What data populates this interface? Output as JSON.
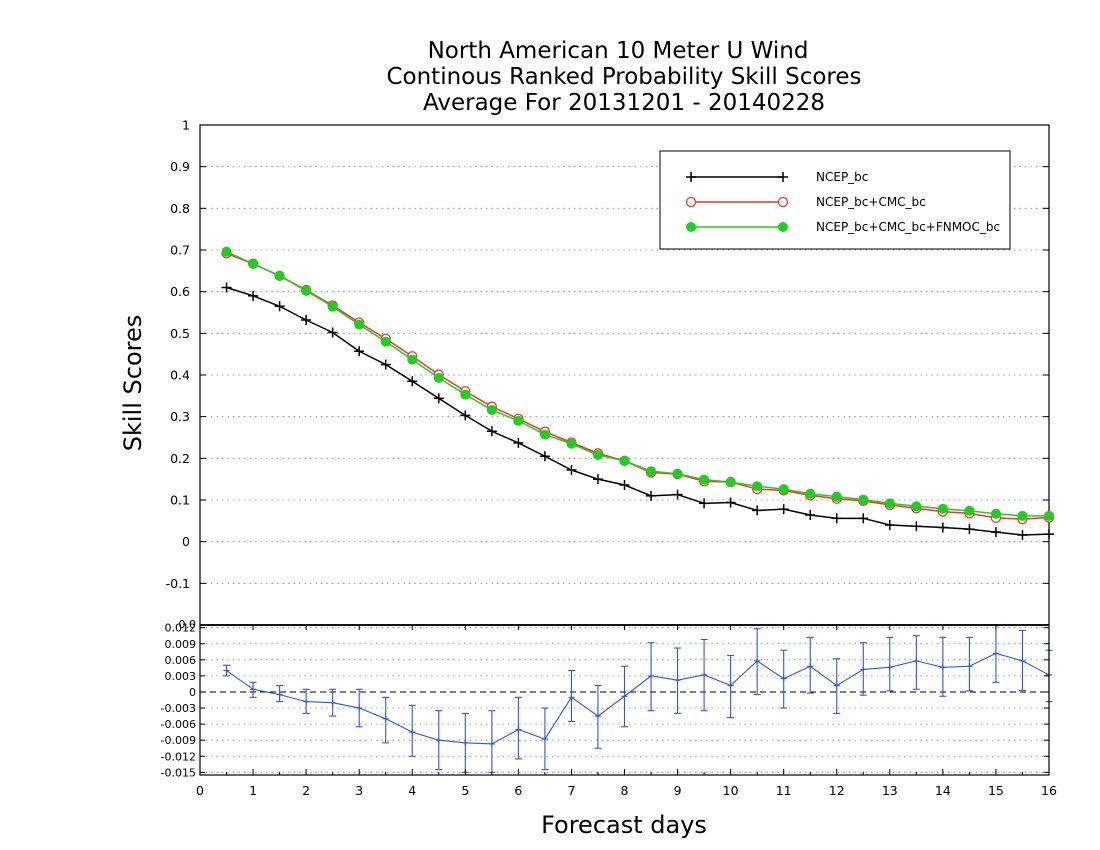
{
  "title_lines": [
    "North American 10 Meter U Wind",
    "Continous Ranked Probability Skill Scores",
    "Average For 20131201 - 20140228"
  ],
  "chart_data": [
    {
      "type": "line",
      "title": "North American 10 Meter U Wind Continous Ranked Probability Skill Scores Average For 20131201 - 20140228",
      "xlabel": "Forecast days",
      "ylabel": "Skill Scores",
      "xlim": [
        0,
        16
      ],
      "ylim": [
        -0.2,
        1
      ],
      "x_ticks": [
        0,
        1,
        2,
        3,
        4,
        5,
        6,
        7,
        8,
        9,
        10,
        11,
        12,
        13,
        14,
        15,
        16
      ],
      "y_ticks": [
        -0.1,
        0,
        0.1,
        0.2,
        0.3,
        0.4,
        0.5,
        0.6,
        0.7,
        0.8,
        0.9,
        1
      ],
      "y_tick_labels": [
        "-0.1",
        "0",
        "0.1",
        "0.2",
        "0.3",
        "0.4",
        "0.5",
        "0.6",
        "0.7",
        "0.8",
        "0.9",
        "1"
      ],
      "grid": "dotted horizontal",
      "legend_position": "top-right",
      "x": [
        0.5,
        1,
        1.5,
        2,
        2.5,
        3,
        3.5,
        4,
        4.5,
        5,
        5.5,
        6,
        6.5,
        7,
        7.5,
        8,
        8.5,
        9,
        9.5,
        10,
        10.5,
        11,
        11.5,
        12,
        12.5,
        13,
        13.5,
        14,
        14.5,
        15,
        15.5,
        16
      ],
      "series": [
        {
          "name": "NCEP_bc",
          "color": "#000000",
          "marker": "plus",
          "values": [
            0.61,
            0.59,
            0.565,
            0.532,
            0.502,
            0.457,
            0.425,
            0.385,
            0.344,
            0.303,
            0.265,
            0.237,
            0.205,
            0.172,
            0.15,
            0.136,
            0.11,
            0.113,
            0.092,
            0.094,
            0.075,
            0.078,
            0.064,
            0.056,
            0.056,
            0.04,
            0.037,
            0.034,
            0.03,
            0.023,
            0.016,
            0.018
          ]
        },
        {
          "name": "NCEP_bc+CMC_bc",
          "color": "#e8392e",
          "marker": "open-circle",
          "values": [
            0.692,
            0.667,
            0.638,
            0.604,
            0.567,
            0.526,
            0.487,
            0.445,
            0.401,
            0.361,
            0.324,
            0.295,
            0.264,
            0.238,
            0.212,
            0.194,
            0.166,
            0.162,
            0.145,
            0.143,
            0.126,
            0.123,
            0.111,
            0.103,
            0.098,
            0.088,
            0.08,
            0.072,
            0.068,
            0.057,
            0.054,
            0.058
          ]
        },
        {
          "name": "NCEP_bc+CMC_bc+FNMOC_bc",
          "color": "#22cc22",
          "marker": "filled-circle",
          "values": [
            0.696,
            0.667,
            0.638,
            0.602,
            0.564,
            0.521,
            0.48,
            0.437,
            0.393,
            0.353,
            0.316,
            0.29,
            0.257,
            0.235,
            0.208,
            0.194,
            0.169,
            0.163,
            0.149,
            0.143,
            0.133,
            0.126,
            0.115,
            0.108,
            0.101,
            0.092,
            0.085,
            0.079,
            0.074,
            0.067,
            0.062,
            0.062
          ]
        }
      ]
    },
    {
      "type": "line",
      "xlabel": "Forecast days",
      "xlim": [
        0,
        16
      ],
      "ylim": [
        -0.0155,
        0.0125
      ],
      "x_ticks": [
        0,
        1,
        2,
        3,
        4,
        5,
        6,
        7,
        8,
        9,
        10,
        11,
        12,
        13,
        14,
        15,
        16
      ],
      "y_ticks": [
        -0.015,
        -0.012,
        -0.009,
        -0.006,
        -0.003,
        0,
        0.003,
        0.006,
        0.009,
        0.012
      ],
      "y_tick_labels": [
        "-0.015",
        "-0.012",
        "-0.009",
        "-0.006",
        "-0.003",
        "0",
        "0.003",
        "0.006",
        "0.009",
        "0.012"
      ],
      "top_axis_partial_label": "0.0",
      "zero_line": "dashed",
      "grid": "dotted horizontal",
      "x": [
        0.5,
        1,
        1.5,
        2,
        2.5,
        3,
        3.5,
        4,
        4.5,
        5,
        5.5,
        6,
        6.5,
        7,
        7.5,
        8,
        8.5,
        9,
        9.5,
        10,
        10.5,
        11,
        11.5,
        12,
        12.5,
        13,
        13.5,
        14,
        14.5,
        15,
        15.5,
        16
      ],
      "series": [
        {
          "name": "",
          "color": "#3355dd",
          "style": "line with error bars",
          "values": [
            0.004,
            0.0005,
            -0.0005,
            -0.0018,
            -0.002,
            -0.003,
            -0.005,
            -0.0075,
            -0.009,
            -0.0095,
            -0.0097,
            -0.007,
            -0.0088,
            -0.001,
            -0.0045,
            -0.0008,
            0.003,
            0.0022,
            0.0032,
            0.0012,
            0.0058,
            0.0025,
            0.0048,
            0.0012,
            0.0042,
            0.0046,
            0.0058,
            0.0046,
            0.0048,
            0.0072,
            0.0058,
            0.0032
          ],
          "error_low": [
            0.003,
            -0.001,
            -0.0018,
            -0.004,
            -0.0045,
            -0.0065,
            -0.0095,
            -0.012,
            -0.0145,
            -0.015,
            -0.015,
            -0.0125,
            -0.0145,
            -0.0055,
            -0.0105,
            -0.0065,
            -0.0035,
            -0.004,
            -0.0035,
            -0.0048,
            -0.0005,
            -0.003,
            -0.0002,
            -0.004,
            -0.0006,
            0.0002,
            0.0005,
            -0.0008,
            0.0002,
            0.0018,
            0.0003,
            -0.0018
          ],
          "error_high": [
            0.005,
            0.0018,
            0.0012,
            0.0005,
            0.0005,
            0.0005,
            -0.001,
            -0.0025,
            -0.0035,
            -0.004,
            -0.0035,
            -0.001,
            -0.003,
            0.004,
            0.0012,
            0.0048,
            0.0092,
            0.0082,
            0.0098,
            0.0068,
            0.0118,
            0.0078,
            0.0102,
            0.0062,
            0.0092,
            0.0102,
            0.0105,
            0.0102,
            0.0102,
            0.0125,
            0.0115,
            0.0078
          ]
        }
      ]
    }
  ],
  "legend": {
    "entries": [
      "NCEP_bc",
      "NCEP_bc+CMC_bc",
      "NCEP_bc+CMC_bc+FNMOC_bc"
    ]
  }
}
